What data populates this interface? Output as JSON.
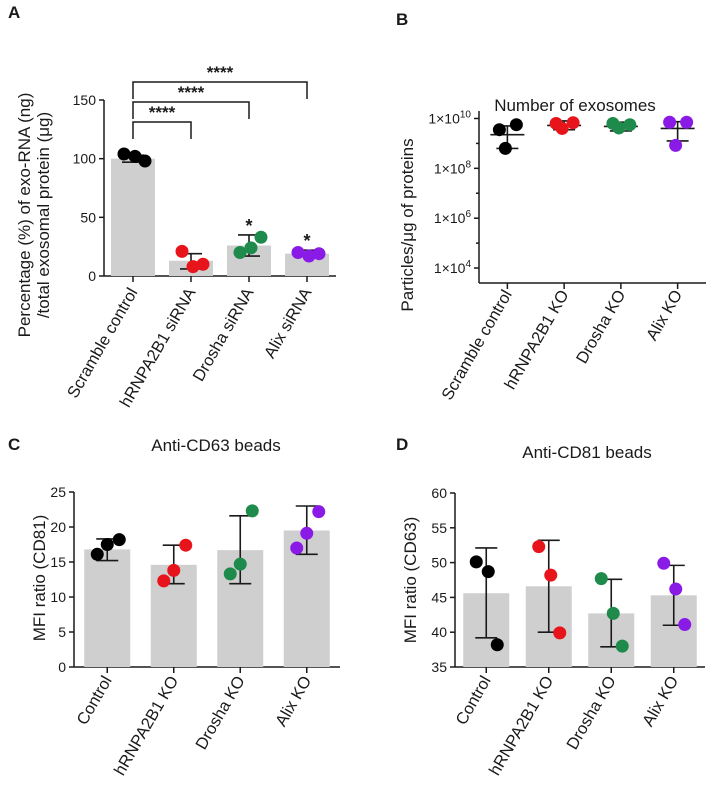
{
  "chart_data": [
    {
      "panel": "A",
      "type": "bar",
      "title": "",
      "ylabel_lines": [
        "Percentage (%) of exo-RNA (ng)",
        "/total exosomal protein (μg)"
      ],
      "xlabel": "",
      "categories": [
        "Scramble control",
        "hRNPA2B1 siRNA",
        "Drosha siRNA",
        "Alix siRNA"
      ],
      "ylim": [
        0,
        150
      ],
      "yticks": [
        0,
        50,
        100,
        150
      ],
      "bars": [
        100,
        13,
        26,
        19
      ],
      "error_low": [
        97,
        6,
        17,
        17
      ],
      "error_high": [
        103,
        19,
        35,
        22
      ],
      "points": [
        [
          104,
          102,
          98
        ],
        [
          21,
          8,
          10
        ],
        [
          20,
          24,
          33
        ],
        [
          20,
          17,
          19
        ]
      ],
      "point_colors": [
        "#000000",
        "#e8141c",
        "#1e8b4c",
        "#8a1ae6"
      ],
      "annotations": [
        "",
        "",
        "*",
        "*"
      ],
      "significance": [
        {
          "from": 0,
          "to": 1,
          "label": "****"
        },
        {
          "from": 0,
          "to": 2,
          "label": "****"
        },
        {
          "from": 0,
          "to": 3,
          "label": "****"
        }
      ]
    },
    {
      "panel": "B",
      "type": "scatter",
      "title": "Number of exosomes",
      "ylabel": "Particles/μg of proteins",
      "xlabel": "",
      "categories": [
        "Scramble control",
        "hRNPA2B1 KO",
        "Drosha KO",
        "Alix KO"
      ],
      "yscale": "log",
      "ylim_exponent": [
        3.4,
        10.3
      ],
      "ytick_exponents": [
        4,
        6,
        8,
        10
      ],
      "ytick_prefix": "1×10",
      "means_log10": [
        9.35,
        9.72,
        9.68,
        9.6
      ],
      "error_low_log10": [
        8.8,
        9.55,
        9.5,
        9.1
      ],
      "error_high_log10": [
        9.7,
        9.9,
        9.85,
        9.87
      ],
      "points_log10": [
        [
          9.55,
          9.75,
          8.8
        ],
        [
          9.8,
          9.83,
          9.6
        ],
        [
          9.8,
          9.75,
          9.62
        ],
        [
          9.85,
          9.85,
          8.92
        ]
      ],
      "point_colors": [
        "#000000",
        "#e8141c",
        "#1e8b4c",
        "#8a1ae6"
      ]
    },
    {
      "panel": "C",
      "type": "bar",
      "title": "Anti-CD63 beads",
      "ylabel": "MFI ratio (CD81)",
      "xlabel": "",
      "categories": [
        "Control",
        "hRNPA2B1 KO",
        "Drosha KO",
        "Alix KO"
      ],
      "ylim": [
        0,
        25
      ],
      "yticks": [
        0,
        5,
        10,
        15,
        20,
        25
      ],
      "bars": [
        16.8,
        14.6,
        16.7,
        19.5
      ],
      "error_low": [
        15.2,
        11.9,
        11.9,
        16.1
      ],
      "error_high": [
        18.3,
        17.4,
        21.6,
        23
      ],
      "points": [
        [
          18.2,
          17.5,
          16.1
        ],
        [
          17.4,
          13.8,
          12.3
        ],
        [
          22.3,
          14.7,
          13.3
        ],
        [
          22.2,
          19.1,
          17
        ]
      ],
      "point_colors": [
        "#000000",
        "#e8141c",
        "#1e8b4c",
        "#8a1ae6"
      ]
    },
    {
      "panel": "D",
      "type": "bar",
      "title": "Anti-CD81 beads",
      "ylabel": "MFI ratio (CD63)",
      "xlabel": "",
      "categories": [
        "Control",
        "hRNPA2B1 KO",
        "Drosha KO",
        "Alix KO"
      ],
      "ylim": [
        35,
        60
      ],
      "yticks": [
        35,
        40,
        45,
        50,
        55,
        60
      ],
      "bars": [
        45.6,
        46.6,
        42.7,
        45.3
      ],
      "error_low": [
        39.2,
        40,
        37.9,
        41
      ],
      "error_high": [
        52.1,
        53.2,
        47.6,
        49.6
      ],
      "points": [
        [
          50.1,
          48.7,
          38.2
        ],
        [
          52.3,
          48.2,
          39.9
        ],
        [
          47.7,
          42.7,
          38
        ],
        [
          49.9,
          46.2,
          41.1
        ]
      ],
      "point_colors": [
        "#000000",
        "#e8141c",
        "#1e8b4c",
        "#8a1ae6"
      ]
    }
  ]
}
